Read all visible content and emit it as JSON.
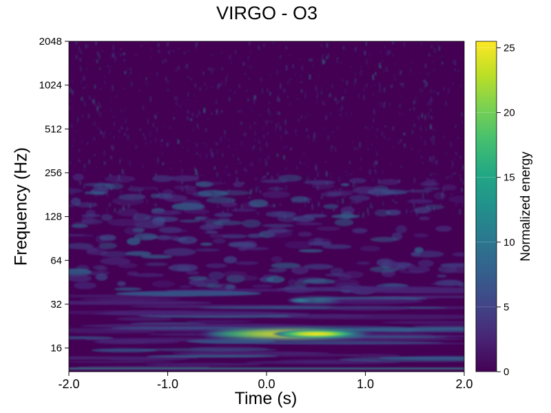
{
  "chart_data": {
    "type": "heatmap",
    "title": "VIRGO - O3",
    "xlabel": "Time (s)",
    "ylabel": "Frequency (Hz)",
    "x_range": [
      -2.0,
      2.0
    ],
    "x_ticks": [
      -2.0,
      -1.0,
      0.0,
      1.0,
      2.0
    ],
    "x_tick_labels": [
      "-2.0",
      "-1.0",
      "0.0",
      "1.0",
      "2.0"
    ],
    "y_scale": "log2",
    "y_range": [
      11,
      2048
    ],
    "y_ticks": [
      16,
      32,
      64,
      128,
      256,
      512,
      1024,
      2048
    ],
    "y_tick_labels": [
      "16",
      "32",
      "64",
      "128",
      "256",
      "512",
      "1024",
      "2048"
    ],
    "colorbar": {
      "label": "Normalized energy",
      "colormap": "viridis",
      "range": [
        0,
        25.5
      ],
      "ticks": [
        0,
        5,
        10,
        15,
        20,
        25
      ],
      "tick_labels": [
        "0",
        "5",
        "10",
        "15",
        "20",
        "25"
      ]
    },
    "features": [
      {
        "t_start": -0.7,
        "t_end": 1.1,
        "t_peak": 0.5,
        "freq_hz": 20,
        "peak_energy": 25
      },
      {
        "t_start": 0.2,
        "t_end": 0.8,
        "t_peak": 0.35,
        "freq_hz": 34,
        "peak_energy": 9
      }
    ],
    "grid": false
  }
}
